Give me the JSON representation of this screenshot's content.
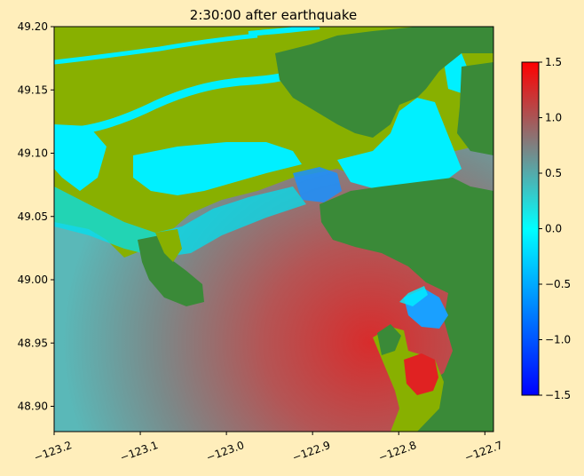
{
  "chart_data": {
    "type": "heatmap",
    "title": "2:30:00 after earthquake",
    "xlabel": "",
    "ylabel": "",
    "xlim": [
      -123.2,
      -122.69
    ],
    "ylim": [
      48.88,
      49.2
    ],
    "x_ticks": [
      -123.2,
      -123.1,
      -123.0,
      -122.9,
      -122.8,
      -122.7
    ],
    "x_tick_labels": [
      "−123.2",
      "−123.1",
      "−123.0",
      "−122.9",
      "−122.8",
      "−122.7"
    ],
    "y_ticks": [
      48.9,
      48.95,
      49.0,
      49.05,
      49.1,
      49.15,
      49.2
    ],
    "y_tick_labels": [
      "48.90",
      "48.95",
      "49.00",
      "49.05",
      "49.10",
      "49.15",
      "49.20"
    ],
    "colorbar": {
      "vmin": -1.5,
      "vmax": 1.5,
      "ticks": [
        -1.5,
        -1.0,
        -0.5,
        0.0,
        0.5,
        1.0,
        1.5
      ],
      "tick_labels": [
        "−1.5",
        "−1.0",
        "−0.5",
        "0.0",
        "0.5",
        "1.0",
        "1.5"
      ],
      "colors": [
        "#0000ff",
        "#00ffff",
        "#ff0000"
      ]
    },
    "colors": {
      "land_low": "#88b000",
      "land_high": "#3a8a38",
      "water_high": "#d02828",
      "water_mid": "#5ab8b8",
      "water_zero": "#00f0ff",
      "water_low": "#1a80ff"
    }
  }
}
